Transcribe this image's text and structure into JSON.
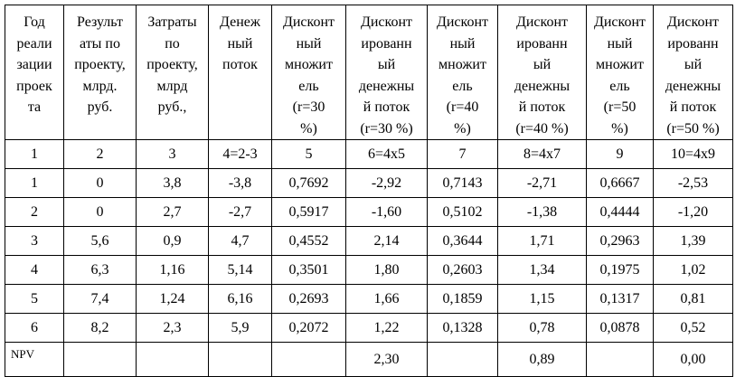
{
  "table": {
    "header": [
      [
        "Год",
        "реали",
        "зации",
        "проек",
        "та"
      ],
      [
        "Результ",
        "аты по",
        "проекту,",
        "млрд.",
        "руб."
      ],
      [
        "Затраты",
        "по",
        "проекту,",
        "млрд",
        "руб.,"
      ],
      [
        "Денеж",
        "ный",
        "поток"
      ],
      [
        "Дисконт",
        "ный",
        "множит",
        "ель",
        "(r=30",
        "%)"
      ],
      [
        "Дисконт",
        "ированн",
        "ый",
        "денежны",
        "й поток",
        "(r=30 %)"
      ],
      [
        "Дисконт",
        "ный",
        "множит",
        "ель",
        "(r=40",
        "%)"
      ],
      [
        "Дисконт",
        "ированн",
        "ый",
        "денежны",
        "й поток",
        "(r=40 %)"
      ],
      [
        "Дисконт",
        "ный",
        "множит",
        "ель",
        "(r=50",
        "%)"
      ],
      [
        "Дисконт",
        "ированн",
        "ый",
        "денежны",
        "й поток",
        "(r=50 %)"
      ]
    ],
    "rows": [
      [
        "1",
        "2",
        "3",
        "4=2-3",
        "5",
        "6=4x5",
        "7",
        "8=4x7",
        "9",
        "10=4x9"
      ],
      [
        "1",
        "0",
        "3,8",
        "-3,8",
        "0,7692",
        "-2,92",
        "0,7143",
        "-2,71",
        "0,6667",
        "-2,53"
      ],
      [
        "2",
        "0",
        "2,7",
        "-2,7",
        "0,5917",
        "-1,60",
        "0,5102",
        "-1,38",
        "0,4444",
        "-1,20"
      ],
      [
        "3",
        "5,6",
        "0,9",
        "4,7",
        "0,4552",
        "2,14",
        "0,3644",
        "1,71",
        "0,2963",
        "1,39"
      ],
      [
        "4",
        "6,3",
        "1,16",
        "5,14",
        "0,3501",
        "1,80",
        "0,2603",
        "1,34",
        "0,1975",
        "1,02"
      ],
      [
        "5",
        "7,4",
        "1,24",
        "6,16",
        "0,2693",
        "1,66",
        "0,1859",
        "1,15",
        "0,1317",
        "0,81"
      ],
      [
        "6",
        "8,2",
        "2,3",
        "5,9",
        "0,2072",
        "1,22",
        "0,1328",
        "0,78",
        "0,0878",
        "0,52"
      ]
    ],
    "npv": [
      "NPV",
      null,
      null,
      null,
      null,
      "2,30",
      null,
      "0,89",
      null,
      "0,00"
    ]
  }
}
